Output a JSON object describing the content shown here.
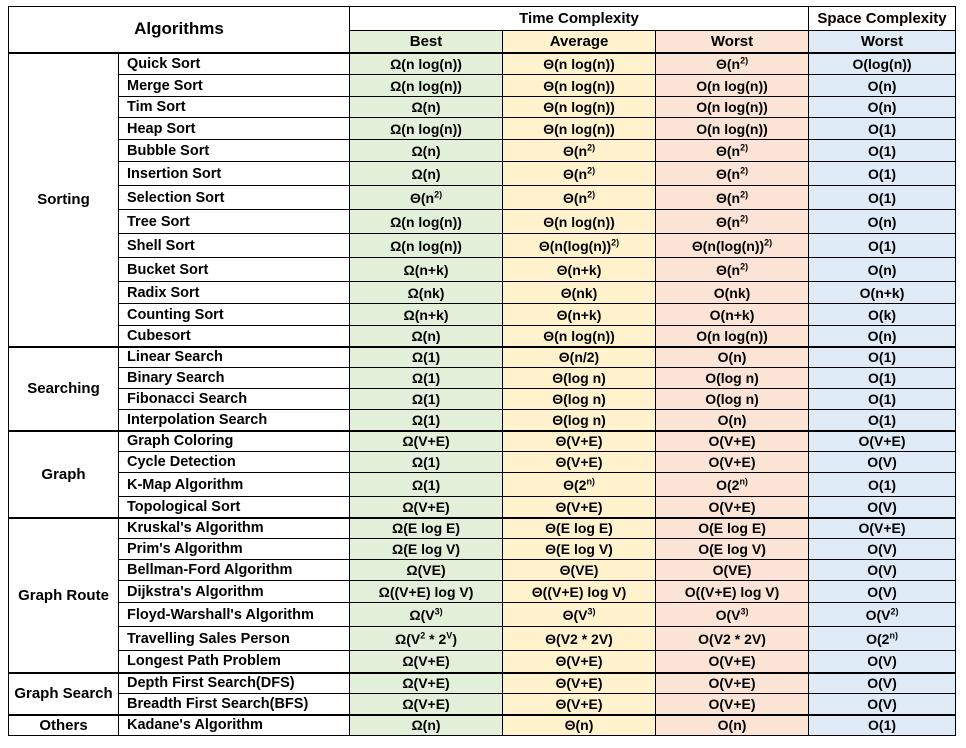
{
  "header": {
    "algorithms": "Algorithms",
    "time_complexity": "Time Complexity",
    "space_complexity": "Space Complexity",
    "best": "Best",
    "average": "Average",
    "worst": "Worst",
    "space_worst": "Worst"
  },
  "colors": {
    "best": "#e2efd9",
    "average": "#fff2cc",
    "worst": "#fbe4d5",
    "space": "#deeaf6"
  },
  "groups": [
    {
      "category": "Sorting",
      "rows": [
        {
          "name": "Quick Sort",
          "best": "Ω(n log(n))",
          "average": "Θ(n log(n))",
          "worst": "Θ(n|2)",
          "space": "O(log(n))"
        },
        {
          "name": "Merge Sort",
          "best": "Ω(n log(n))",
          "average": "Θ(n log(n))",
          "worst": "O(n log(n))",
          "space": "O(n)"
        },
        {
          "name": "Tim Sort",
          "best": "Ω(n)",
          "average": "Θ(n log(n))",
          "worst": "O(n log(n))",
          "space": "O(n)"
        },
        {
          "name": "Heap Sort",
          "best": "Ω(n log(n))",
          "average": "Θ(n log(n))",
          "worst": "O(n log(n))",
          "space": "O(1)"
        },
        {
          "name": "Bubble Sort",
          "best": "Ω(n)",
          "average": "Θ(n|2)",
          "worst": "Θ(n|2)",
          "space": "O(1)"
        },
        {
          "name": "Insertion Sort",
          "best": "Ω(n)",
          "average": "Θ(n|2)",
          "worst": "Θ(n|2)",
          "space": "O(1)"
        },
        {
          "name": "Selection Sort",
          "best": "Θ(n|2)",
          "average": "Θ(n|2)",
          "worst": "Θ(n|2)",
          "space": "O(1)"
        },
        {
          "name": "Tree Sort",
          "best": "Ω(n log(n))",
          "average": "Θ(n log(n))",
          "worst": "Θ(n|2)",
          "space": "O(n)"
        },
        {
          "name": "Shell Sort",
          "best": "Ω(n log(n))",
          "average": "Θ(n(log(n))|2)",
          "worst": "Θ(n(log(n))|2)",
          "space": "O(1)"
        },
        {
          "name": "Bucket Sort",
          "best": "Ω(n+k)",
          "average": "Θ(n+k)",
          "worst": "Θ(n|2)",
          "space": "O(n)"
        },
        {
          "name": "Radix Sort",
          "best": "Ω(nk)",
          "average": "Θ(nk)",
          "worst": "O(nk)",
          "space": "O(n+k)"
        },
        {
          "name": "Counting Sort",
          "best": "Ω(n+k)",
          "average": "Θ(n+k)",
          "worst": "O(n+k)",
          "space": "O(k)"
        },
        {
          "name": "Cubesort",
          "best": "Ω(n)",
          "average": "Θ(n log(n))",
          "worst": "O(n log(n))",
          "space": "O(n)"
        }
      ]
    },
    {
      "category": "Searching",
      "rows": [
        {
          "name": "Linear Search",
          "best": "Ω(1)",
          "average": "Θ(n/2)",
          "worst": "O(n)",
          "space": "O(1)"
        },
        {
          "name": "Binary Search",
          "best": "Ω(1)",
          "average": "Θ(log n)",
          "worst": "O(log n)",
          "space": "O(1)"
        },
        {
          "name": "Fibonacci Search",
          "best": "Ω(1)",
          "average": "Θ(log n)",
          "worst": "O(log n)",
          "space": "O(1)"
        },
        {
          "name": "Interpolation Search",
          "best": "Ω(1)",
          "average": "Θ(log n)",
          "worst": "O(n)",
          "space": "O(1)"
        }
      ]
    },
    {
      "category": "Graph",
      "rows": [
        {
          "name": "Graph Coloring",
          "best": "Ω(V+E)",
          "average": "Θ(V+E)",
          "worst": "O(V+E)",
          "space": "O(V+E)"
        },
        {
          "name": "Cycle Detection",
          "best": "Ω(1)",
          "average": "Θ(V+E)",
          "worst": "O(V+E)",
          "space": "O(V)"
        },
        {
          "name": "K-Map Algorithm",
          "best": "Ω(1)",
          "average": "Θ(2|n)",
          "worst": "O(2|n)",
          "space": "O(1)"
        },
        {
          "name": "Topological Sort",
          "best": "Ω(V+E)",
          "average": "Θ(V+E)",
          "worst": "O(V+E)",
          "space": "O(V)"
        }
      ]
    },
    {
      "category": "Graph Route",
      "rows": [
        {
          "name": "Kruskal's Algorithm",
          "best": "Ω(E log E)",
          "average": "Θ(E log E)",
          "worst": "O(E log E)",
          "space": "O(V+E)"
        },
        {
          "name": "Prim's Algorithm",
          "best": "Ω(E log V)",
          "average": "Θ(E log V)",
          "worst": "O(E log V)",
          "space": "O(V)"
        },
        {
          "name": "Bellman-Ford Algorithm",
          "best": "Ω(VE)",
          "average": "Θ(VE)",
          "worst": "O(VE)",
          "space": "O(V)"
        },
        {
          "name": "Dijkstra's Algorithm",
          "best": "Ω((V+E) log V)",
          "average": "Θ((V+E) log V)",
          "worst": "O((V+E) log V)",
          "space": "O(V)"
        },
        {
          "name": "Floyd-Warshall's Algorithm",
          "best": "Ω(V|3)",
          "average": "Θ(V|3)",
          "worst": "O(V|3)",
          "space": "O(V|2)"
        },
        {
          "name": "Travelling Sales Person",
          "best": "Ω(V|2| * 2|V|)",
          "average": "Θ(V2 * 2V)",
          "worst": "O(V2 * 2V)",
          "space": "O(2|n)"
        },
        {
          "name": "Longest Path Problem",
          "best": "Ω(V+E)",
          "average": "Θ(V+E)",
          "worst": "O(V+E)",
          "space": "O(V)"
        }
      ]
    },
    {
      "category": "Graph Search",
      "rows": [
        {
          "name": "Depth First Search(DFS)",
          "best": "Ω(V+E)",
          "average": "Θ(V+E)",
          "worst": "O(V+E)",
          "space": "O(V)"
        },
        {
          "name": "Breadth First Search(BFS)",
          "best": "Ω(V+E)",
          "average": "Θ(V+E)",
          "worst": "O(V+E)",
          "space": "O(V)"
        }
      ]
    },
    {
      "category": "Others",
      "rows": [
        {
          "name": "Kadane's Algorithm",
          "best": "Ω(n)",
          "average": "Θ(n)",
          "worst": "O(n)",
          "space": "O(1)"
        }
      ]
    }
  ]
}
